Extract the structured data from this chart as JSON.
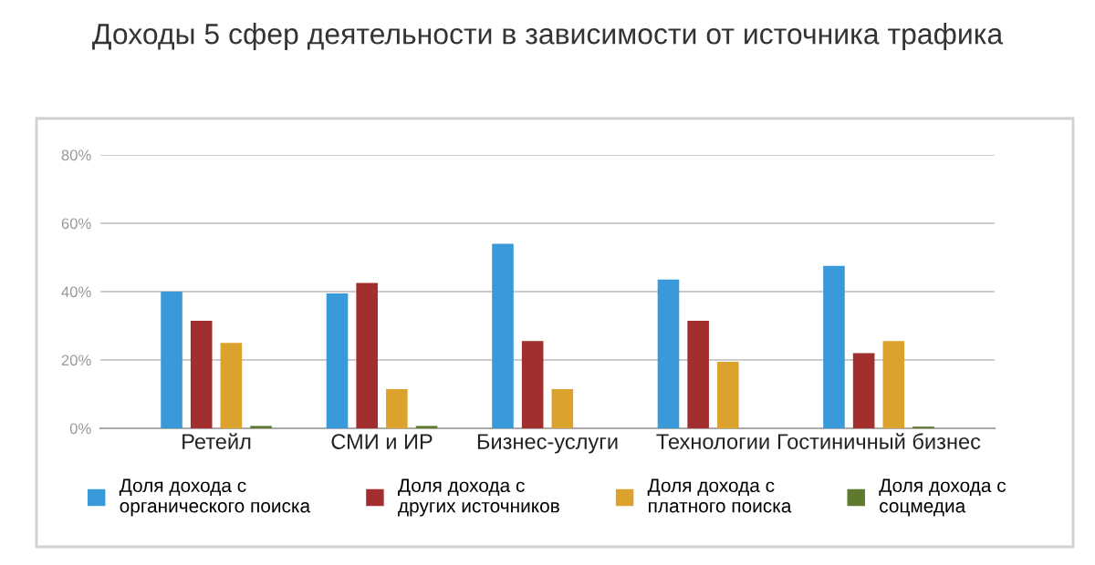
{
  "chart_data": {
    "type": "bar",
    "title": "Доходы 5 сфер деятельности в зависимости от источника трафика",
    "categories": [
      "Ретейл",
      "СМИ и ИР",
      "Бизнес-услуги",
      "Технологии",
      "Гостиничный бизнес"
    ],
    "series": [
      {
        "name": "Доля дохода с\nорганического поиска",
        "color": "#3a9ad9",
        "values": [
          40,
          39.5,
          54,
          43.5,
          47.5
        ]
      },
      {
        "name": "Доля дохода с\nдругих источников",
        "color": "#a32e2e",
        "values": [
          31.5,
          42.5,
          25.5,
          31.5,
          22
        ]
      },
      {
        "name": "Доля дохода с\nплатного поиска",
        "color": "#dba32e",
        "values": [
          25,
          11.5,
          11.5,
          19.5,
          25.5
        ]
      },
      {
        "name": "Доля дохода с\nсоцмедиа",
        "color": "#5e7a2e",
        "values": [
          0.7,
          0.7,
          0,
          0,
          0.5
        ]
      }
    ],
    "ylim": [
      0,
      80
    ],
    "yticks": [
      {
        "value": 0,
        "label": "0%"
      },
      {
        "value": 20,
        "label": "20%"
      },
      {
        "value": 40,
        "label": "40%"
      },
      {
        "value": 60,
        "label": "60%"
      },
      {
        "value": 80,
        "label": "80%"
      }
    ],
    "grid": "y",
    "legend": "bottom"
  }
}
